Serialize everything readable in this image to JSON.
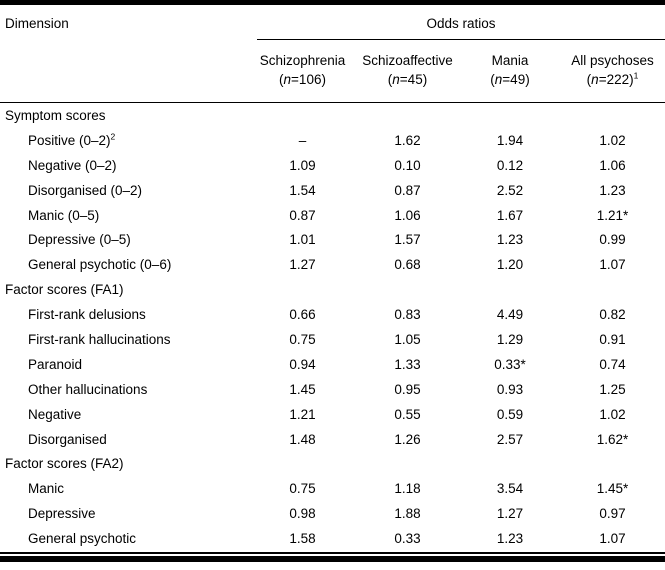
{
  "colors": {
    "text": "#000000",
    "background": "#ffffff",
    "rule": "#000000"
  },
  "table": {
    "dimension_header": "Dimension",
    "group_header": "Odds ratios",
    "columns": [
      {
        "name": "Schizophrenia",
        "n_prefix": "(",
        "n_italic": "n",
        "n_suffix": "=106)",
        "sup": ""
      },
      {
        "name": "Schizoaffective",
        "n_prefix": "(",
        "n_italic": "n",
        "n_suffix": "=45)",
        "sup": ""
      },
      {
        "name": "Mania",
        "n_prefix": "(",
        "n_italic": "n",
        "n_suffix": "=49)",
        "sup": ""
      },
      {
        "name": "All psychoses",
        "n_prefix": "(",
        "n_italic": "n",
        "n_suffix": "=222)",
        "sup": "1"
      }
    ],
    "sections": [
      {
        "label": "Symptom scores",
        "rows": [
          {
            "label": "Positive (0–2)",
            "sup": "2",
            "values": [
              "–",
              "1.62",
              "1.94",
              "1.02"
            ]
          },
          {
            "label": "Negative (0–2)",
            "sup": "",
            "values": [
              "1.09",
              "0.10",
              "0.12",
              "1.06"
            ]
          },
          {
            "label": "Disorganised (0–2)",
            "sup": "",
            "values": [
              "1.54",
              "0.87",
              "2.52",
              "1.23"
            ]
          },
          {
            "label": "Manic (0–5)",
            "sup": "",
            "values": [
              "0.87",
              "1.06",
              "1.67",
              "1.21*"
            ]
          },
          {
            "label": "Depressive (0–5)",
            "sup": "",
            "values": [
              "1.01",
              "1.57",
              "1.23",
              "0.99"
            ]
          },
          {
            "label": "General psychotic (0–6)",
            "sup": "",
            "values": [
              "1.27",
              "0.68",
              "1.20",
              "1.07"
            ]
          }
        ]
      },
      {
        "label": "Factor scores (FA1)",
        "rows": [
          {
            "label": "First-rank delusions",
            "sup": "",
            "values": [
              "0.66",
              "0.83",
              "4.49",
              "0.82"
            ]
          },
          {
            "label": "First-rank hallucinations",
            "sup": "",
            "values": [
              "0.75",
              "1.05",
              "1.29",
              "0.91"
            ]
          },
          {
            "label": "Paranoid",
            "sup": "",
            "values": [
              "0.94",
              "1.33",
              "0.33*",
              "0.74"
            ]
          },
          {
            "label": "Other hallucinations",
            "sup": "",
            "values": [
              "1.45",
              "0.95",
              "0.93",
              "1.25"
            ]
          },
          {
            "label": "Negative",
            "sup": "",
            "values": [
              "1.21",
              "0.55",
              "0.59",
              "1.02"
            ]
          },
          {
            "label": "Disorganised",
            "sup": "",
            "values": [
              "1.48",
              "1.26",
              "2.57",
              "1.62*"
            ]
          }
        ]
      },
      {
        "label": "Factor scores (FA2)",
        "rows": [
          {
            "label": "Manic",
            "sup": "",
            "values": [
              "0.75",
              "1.18",
              "3.54",
              "1.45*"
            ]
          },
          {
            "label": "Depressive",
            "sup": "",
            "values": [
              "0.98",
              "1.88",
              "1.27",
              "0.97"
            ]
          },
          {
            "label": "General psychotic",
            "sup": "",
            "values": [
              "1.58",
              "0.33",
              "1.23",
              "1.07"
            ]
          }
        ]
      }
    ]
  }
}
